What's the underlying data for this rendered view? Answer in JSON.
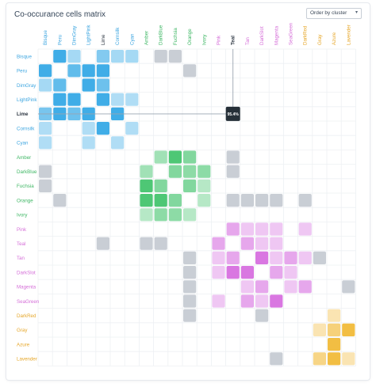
{
  "title": "Co-occurance cells matrix",
  "sort": {
    "label": "Order by cluster",
    "caret": "▾"
  },
  "chart_data": {
    "type": "heatmap",
    "title": "Co-occurance cells matrix",
    "categories": [
      "Bisque",
      "Peru",
      "DimGray",
      "LightPink",
      "Lime",
      "Cornsilk",
      "Cyan",
      "Amber",
      "DarkBlue",
      "Fuchsia",
      "Orange",
      "Ivory",
      "Pink",
      "Teal",
      "Tan",
      "DarkSlot",
      "Magenta",
      "SeaGreen",
      "DarkRed",
      "Gray",
      "Azure",
      "Lavender"
    ],
    "highlight": {
      "row": "Lime",
      "column": "Teal",
      "value_label": "95.4%"
    },
    "colors": {
      "blue": "#1e9fe3",
      "green": "#2fbd5d",
      "purple": "#d25fdc",
      "orange": "#f0b322",
      "neutral": "#c9ced5",
      "grid": "#edf0f3",
      "tooltip": "#263038"
    },
    "label_colors": [
      "#3ea6e0",
      "#3ea6e0",
      "#3ea6e0",
      "#3ea6e0",
      "#2b3440",
      "#3ea6e0",
      "#3ea6e0",
      "#3fb765",
      "#3fb765",
      "#3fb765",
      "#3fb765",
      "#3fb765",
      "#d56fd8",
      "#d56fd8",
      "#d56fd8",
      "#d56fd8",
      "#d56fd8",
      "#d56fd8",
      "#e6a72a",
      "#e6a72a",
      "#e6a72a",
      "#e6a72a"
    ],
    "cells": [
      [
        0,
        1,
        "blue",
        0.85
      ],
      [
        0,
        2,
        "blue",
        0.4
      ],
      [
        0,
        4,
        "blue",
        0.55
      ],
      [
        0,
        5,
        "blue",
        0.4
      ],
      [
        0,
        6,
        "blue",
        0.4
      ],
      [
        0,
        8,
        "neutral",
        1
      ],
      [
        0,
        9,
        "neutral",
        1
      ],
      [
        1,
        0,
        "blue",
        0.85
      ],
      [
        1,
        2,
        "blue",
        0.7
      ],
      [
        1,
        3,
        "blue",
        0.85
      ],
      [
        1,
        4,
        "blue",
        0.85
      ],
      [
        1,
        10,
        "neutral",
        1
      ],
      [
        2,
        0,
        "blue",
        0.4
      ],
      [
        2,
        1,
        "blue",
        0.7
      ],
      [
        2,
        3,
        "blue",
        0.85
      ],
      [
        2,
        4,
        "blue",
        0.65
      ],
      [
        3,
        1,
        "blue",
        0.85
      ],
      [
        3,
        2,
        "blue",
        0.85
      ],
      [
        3,
        4,
        "blue",
        0.85
      ],
      [
        3,
        5,
        "blue",
        0.35
      ],
      [
        3,
        6,
        "blue",
        0.35
      ],
      [
        4,
        0,
        "blue",
        0.6
      ],
      [
        4,
        1,
        "blue",
        0.85
      ],
      [
        4,
        2,
        "blue",
        0.65
      ],
      [
        4,
        3,
        "blue",
        0.85
      ],
      [
        4,
        5,
        "blue",
        0.85
      ],
      [
        5,
        0,
        "blue",
        0.35
      ],
      [
        5,
        3,
        "blue",
        0.35
      ],
      [
        5,
        4,
        "blue",
        0.85
      ],
      [
        5,
        6,
        "blue",
        0.35
      ],
      [
        6,
        0,
        "blue",
        0.35
      ],
      [
        6,
        3,
        "blue",
        0.35
      ],
      [
        6,
        5,
        "blue",
        0.35
      ],
      [
        7,
        8,
        "green",
        0.45
      ],
      [
        7,
        9,
        "green",
        0.85
      ],
      [
        7,
        10,
        "green",
        0.6
      ],
      [
        7,
        13,
        "neutral",
        1
      ],
      [
        8,
        0,
        "neutral",
        1
      ],
      [
        8,
        7,
        "green",
        0.45
      ],
      [
        8,
        9,
        "green",
        0.6
      ],
      [
        8,
        10,
        "green",
        0.55
      ],
      [
        8,
        11,
        "green",
        0.55
      ],
      [
        8,
        13,
        "neutral",
        1
      ],
      [
        9,
        0,
        "neutral",
        1
      ],
      [
        9,
        7,
        "green",
        0.85
      ],
      [
        9,
        8,
        "green",
        0.6
      ],
      [
        9,
        10,
        "green",
        0.6
      ],
      [
        9,
        11,
        "green",
        0.35
      ],
      [
        10,
        1,
        "neutral",
        1
      ],
      [
        10,
        7,
        "green",
        0.85
      ],
      [
        10,
        8,
        "green",
        0.85
      ],
      [
        10,
        9,
        "green",
        0.6
      ],
      [
        10,
        11,
        "green",
        0.35
      ],
      [
        10,
        13,
        "neutral",
        1
      ],
      [
        10,
        14,
        "neutral",
        1
      ],
      [
        10,
        15,
        "neutral",
        1
      ],
      [
        10,
        16,
        "neutral",
        1
      ],
      [
        10,
        18,
        "neutral",
        1
      ],
      [
        11,
        7,
        "green",
        0.35
      ],
      [
        11,
        8,
        "green",
        0.55
      ],
      [
        11,
        9,
        "green",
        0.55
      ],
      [
        11,
        10,
        "green",
        0.35
      ],
      [
        12,
        13,
        "purple",
        0.55
      ],
      [
        12,
        14,
        "purple",
        0.35
      ],
      [
        12,
        15,
        "purple",
        0.35
      ],
      [
        12,
        16,
        "purple",
        0.35
      ],
      [
        12,
        18,
        "purple",
        0.35
      ],
      [
        13,
        4,
        "neutral",
        1
      ],
      [
        13,
        7,
        "neutral",
        1
      ],
      [
        13,
        8,
        "neutral",
        1
      ],
      [
        13,
        12,
        "purple",
        0.55
      ],
      [
        13,
        14,
        "purple",
        0.55
      ],
      [
        13,
        15,
        "purple",
        0.35
      ],
      [
        13,
        16,
        "purple",
        0.35
      ],
      [
        14,
        10,
        "neutral",
        1
      ],
      [
        14,
        12,
        "purple",
        0.35
      ],
      [
        14,
        13,
        "purple",
        0.55
      ],
      [
        14,
        15,
        "purple",
        0.85
      ],
      [
        14,
        16,
        "purple",
        0.35
      ],
      [
        14,
        17,
        "purple",
        0.55
      ],
      [
        14,
        18,
        "purple",
        0.35
      ],
      [
        14,
        19,
        "neutral",
        1
      ],
      [
        15,
        10,
        "neutral",
        1
      ],
      [
        15,
        12,
        "purple",
        0.35
      ],
      [
        15,
        13,
        "purple",
        0.85
      ],
      [
        15,
        14,
        "purple",
        0.85
      ],
      [
        15,
        16,
        "purple",
        0.55
      ],
      [
        15,
        17,
        "purple",
        0.35
      ],
      [
        16,
        10,
        "neutral",
        1
      ],
      [
        16,
        14,
        "purple",
        0.35
      ],
      [
        16,
        15,
        "purple",
        0.55
      ],
      [
        16,
        17,
        "purple",
        0.35
      ],
      [
        16,
        18,
        "purple",
        0.55
      ],
      [
        16,
        21,
        "neutral",
        1
      ],
      [
        17,
        10,
        "neutral",
        1
      ],
      [
        17,
        12,
        "purple",
        0.35
      ],
      [
        17,
        14,
        "purple",
        0.55
      ],
      [
        17,
        15,
        "purple",
        0.35
      ],
      [
        17,
        16,
        "purple",
        0.85
      ],
      [
        18,
        10,
        "neutral",
        1
      ],
      [
        18,
        15,
        "neutral",
        1
      ],
      [
        18,
        20,
        "orange",
        0.35
      ],
      [
        19,
        19,
        "orange",
        0.35
      ],
      [
        19,
        20,
        "orange",
        0.6
      ],
      [
        19,
        21,
        "orange",
        0.85
      ],
      [
        20,
        20,
        "orange",
        0.85
      ],
      [
        21,
        16,
        "neutral",
        1
      ],
      [
        21,
        19,
        "orange",
        0.55
      ],
      [
        21,
        20,
        "orange",
        0.85
      ],
      [
        21,
        21,
        "orange",
        0.35
      ]
    ]
  }
}
